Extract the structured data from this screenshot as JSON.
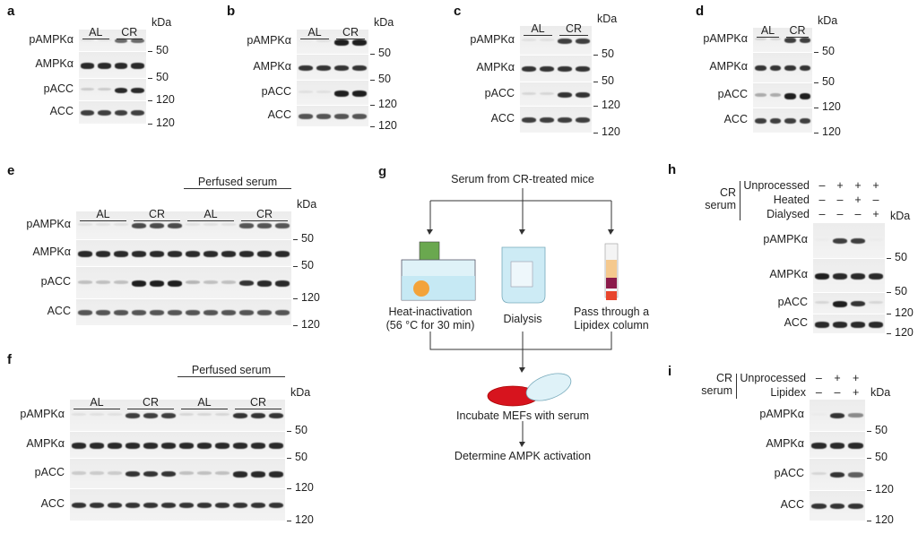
{
  "units": "kDa",
  "panels": [
    {
      "id": "a",
      "rows": [
        {
          "label": "pAMPKα",
          "marker": "50",
          "bands": [
            0.05,
            0.05,
            0.6,
            0.6
          ]
        },
        {
          "label": "AMPKα",
          "marker": "50",
          "bands": [
            0.9,
            0.9,
            0.9,
            0.9
          ]
        },
        {
          "label": "pACC",
          "marker": "120",
          "bands": [
            0.15,
            0.15,
            0.9,
            0.9
          ]
        },
        {
          "label": "ACC",
          "marker": "120",
          "bands": [
            0.8,
            0.8,
            0.8,
            0.8
          ]
        }
      ],
      "groups": [
        {
          "label": "AL",
          "lanes": [
            0,
            1
          ]
        },
        {
          "label": "CR",
          "lanes": [
            2,
            3
          ]
        }
      ]
    },
    {
      "id": "b",
      "rows": [
        {
          "label": "pAMPKα",
          "marker": "50",
          "bands": [
            0.0,
            0.05,
            0.95,
            0.95
          ]
        },
        {
          "label": "AMPKα",
          "marker": "50",
          "bands": [
            0.85,
            0.85,
            0.85,
            0.85
          ]
        },
        {
          "label": "pACC",
          "marker": "120",
          "bands": [
            0.05,
            0.05,
            0.95,
            0.95
          ]
        },
        {
          "label": "ACC",
          "marker": "120",
          "bands": [
            0.7,
            0.7,
            0.7,
            0.7
          ]
        }
      ],
      "groups": [
        {
          "label": "AL",
          "lanes": [
            0,
            1
          ]
        },
        {
          "label": "CR",
          "lanes": [
            2,
            3
          ]
        }
      ]
    },
    {
      "id": "c",
      "rows": [
        {
          "label": "pAMPKα",
          "marker": "50",
          "bands": [
            0.05,
            0.05,
            0.8,
            0.8
          ]
        },
        {
          "label": "AMPKα",
          "marker": "50",
          "bands": [
            0.85,
            0.85,
            0.85,
            0.85
          ]
        },
        {
          "label": "pACC",
          "marker": "120",
          "bands": [
            0.1,
            0.1,
            0.85,
            0.85
          ]
        },
        {
          "label": "ACC",
          "marker": "120",
          "bands": [
            0.8,
            0.8,
            0.8,
            0.8
          ]
        }
      ],
      "groups": [
        {
          "label": "AL",
          "lanes": [
            0,
            1
          ]
        },
        {
          "label": "CR",
          "lanes": [
            2,
            3
          ]
        }
      ]
    },
    {
      "id": "d",
      "rows": [
        {
          "label": "pAMPKα",
          "marker": "50",
          "bands": [
            0.1,
            0.1,
            0.8,
            0.8
          ]
        },
        {
          "label": "AMPKα",
          "marker": "50",
          "bands": [
            0.85,
            0.85,
            0.85,
            0.85
          ]
        },
        {
          "label": "pACC",
          "marker": "120",
          "bands": [
            0.3,
            0.3,
            0.95,
            0.95
          ]
        },
        {
          "label": "ACC",
          "marker": "120",
          "bands": [
            0.8,
            0.8,
            0.8,
            0.8
          ]
        }
      ],
      "groups": [
        {
          "label": "AL",
          "lanes": [
            0,
            1
          ]
        },
        {
          "label": "CR",
          "lanes": [
            2,
            3
          ]
        }
      ]
    },
    {
      "id": "e",
      "rows": [
        {
          "label": "pAMPKα",
          "marker": "50",
          "bands": [
            0.05,
            0.05,
            0.05,
            0.75,
            0.75,
            0.75,
            0.05,
            0.05,
            0.05,
            0.7,
            0.7,
            0.7
          ]
        },
        {
          "label": "AMPKα",
          "marker": "50",
          "bands": [
            0.9,
            0.9,
            0.9,
            0.9,
            0.9,
            0.9,
            0.9,
            0.9,
            0.9,
            0.9,
            0.9,
            0.9
          ]
        },
        {
          "label": "pACC",
          "marker": "120",
          "bands": [
            0.2,
            0.2,
            0.2,
            0.95,
            0.95,
            0.95,
            0.25,
            0.2,
            0.2,
            0.85,
            0.9,
            0.9
          ]
        },
        {
          "label": "ACC",
          "marker": "120",
          "bands": [
            0.7,
            0.7,
            0.7,
            0.7,
            0.7,
            0.7,
            0.7,
            0.7,
            0.7,
            0.7,
            0.7,
            0.7
          ]
        }
      ],
      "super": {
        "label": "Perfused serum",
        "lanes": [
          6,
          11
        ]
      },
      "groups": [
        {
          "label": "AL",
          "lanes": [
            0,
            2
          ]
        },
        {
          "label": "CR",
          "lanes": [
            3,
            5
          ]
        },
        {
          "label": "AL",
          "lanes": [
            6,
            8
          ]
        },
        {
          "label": "CR",
          "lanes": [
            9,
            11
          ]
        }
      ]
    },
    {
      "id": "f",
      "rows": [
        {
          "label": "pAMPKα",
          "marker": "50",
          "bands": [
            0.05,
            0.05,
            0.05,
            0.8,
            0.8,
            0.8,
            0.1,
            0.1,
            0.1,
            0.85,
            0.85,
            0.85
          ]
        },
        {
          "label": "AMPKα",
          "marker": "50",
          "bands": [
            0.9,
            0.9,
            0.9,
            0.9,
            0.9,
            0.9,
            0.9,
            0.9,
            0.9,
            0.9,
            0.9,
            0.9
          ]
        },
        {
          "label": "pACC",
          "marker": "120",
          "bands": [
            0.15,
            0.15,
            0.15,
            0.85,
            0.85,
            0.85,
            0.2,
            0.2,
            0.2,
            0.9,
            0.9,
            0.9
          ]
        },
        {
          "label": "ACC",
          "marker": "120",
          "bands": [
            0.85,
            0.85,
            0.85,
            0.85,
            0.85,
            0.85,
            0.85,
            0.85,
            0.85,
            0.85,
            0.85,
            0.85
          ]
        }
      ],
      "super": {
        "label": "Perfused serum",
        "lanes": [
          6,
          11
        ]
      },
      "groups": [
        {
          "label": "AL",
          "lanes": [
            0,
            2
          ]
        },
        {
          "label": "CR",
          "lanes": [
            3,
            5
          ]
        },
        {
          "label": "AL",
          "lanes": [
            6,
            8
          ]
        },
        {
          "label": "CR",
          "lanes": [
            9,
            11
          ]
        }
      ]
    },
    {
      "id": "h",
      "rows": [
        {
          "label": "pAMPKα",
          "marker": "50",
          "bands": [
            0.0,
            0.8,
            0.8,
            0.0
          ]
        },
        {
          "label": "AMPKα",
          "marker": "50",
          "bands": [
            0.95,
            0.9,
            0.9,
            0.9
          ]
        },
        {
          "label": "pACC",
          "marker": "120",
          "bands": [
            0.1,
            0.95,
            0.85,
            0.1
          ]
        },
        {
          "label": "ACC",
          "marker": "120",
          "bands": [
            0.9,
            0.9,
            0.9,
            0.9
          ]
        }
      ],
      "bracket": "CR serum",
      "conditions": [
        {
          "label": "Unprocessed",
          "signs": [
            "–",
            "+",
            "+",
            "+"
          ]
        },
        {
          "label": "Heated",
          "signs": [
            "–",
            "–",
            "+",
            "–"
          ]
        },
        {
          "label": "Dialysed",
          "signs": [
            "–",
            "–",
            "–",
            "+"
          ]
        }
      ]
    },
    {
      "id": "i",
      "rows": [
        {
          "label": "pAMPKα",
          "marker": "50",
          "bands": [
            0.0,
            0.85,
            0.45
          ]
        },
        {
          "label": "AMPKα",
          "marker": "50",
          "bands": [
            0.9,
            0.9,
            0.9
          ]
        },
        {
          "label": "pACC",
          "marker": "120",
          "bands": [
            0.1,
            0.85,
            0.65
          ]
        },
        {
          "label": "ACC",
          "marker": "120",
          "bands": [
            0.85,
            0.85,
            0.85
          ]
        }
      ],
      "bracket": "CR serum",
      "conditions": [
        {
          "label": "Unprocessed",
          "signs": [
            "–",
            "+",
            "+"
          ]
        },
        {
          "label": "Lipidex",
          "signs": [
            "–",
            "–",
            "+"
          ]
        }
      ]
    }
  ],
  "diagram": {
    "label": "g",
    "source": "Serum from CR-treated mice",
    "branches": [
      "Heat-inactivation",
      "(56 °C for 30 min)",
      "Dialysis",
      "Pass through a",
      "Lipidex column"
    ],
    "incubate": "Incubate MEFs with serum",
    "result": "Determine AMPK activation",
    "colors": {
      "dish": "#d7141e",
      "bath": "#bfe6f2",
      "flask": "#f3a33a",
      "column_top": "#f5c98e",
      "column_bottom": "#8b1a4a",
      "heater": "#5f9e3e"
    }
  }
}
